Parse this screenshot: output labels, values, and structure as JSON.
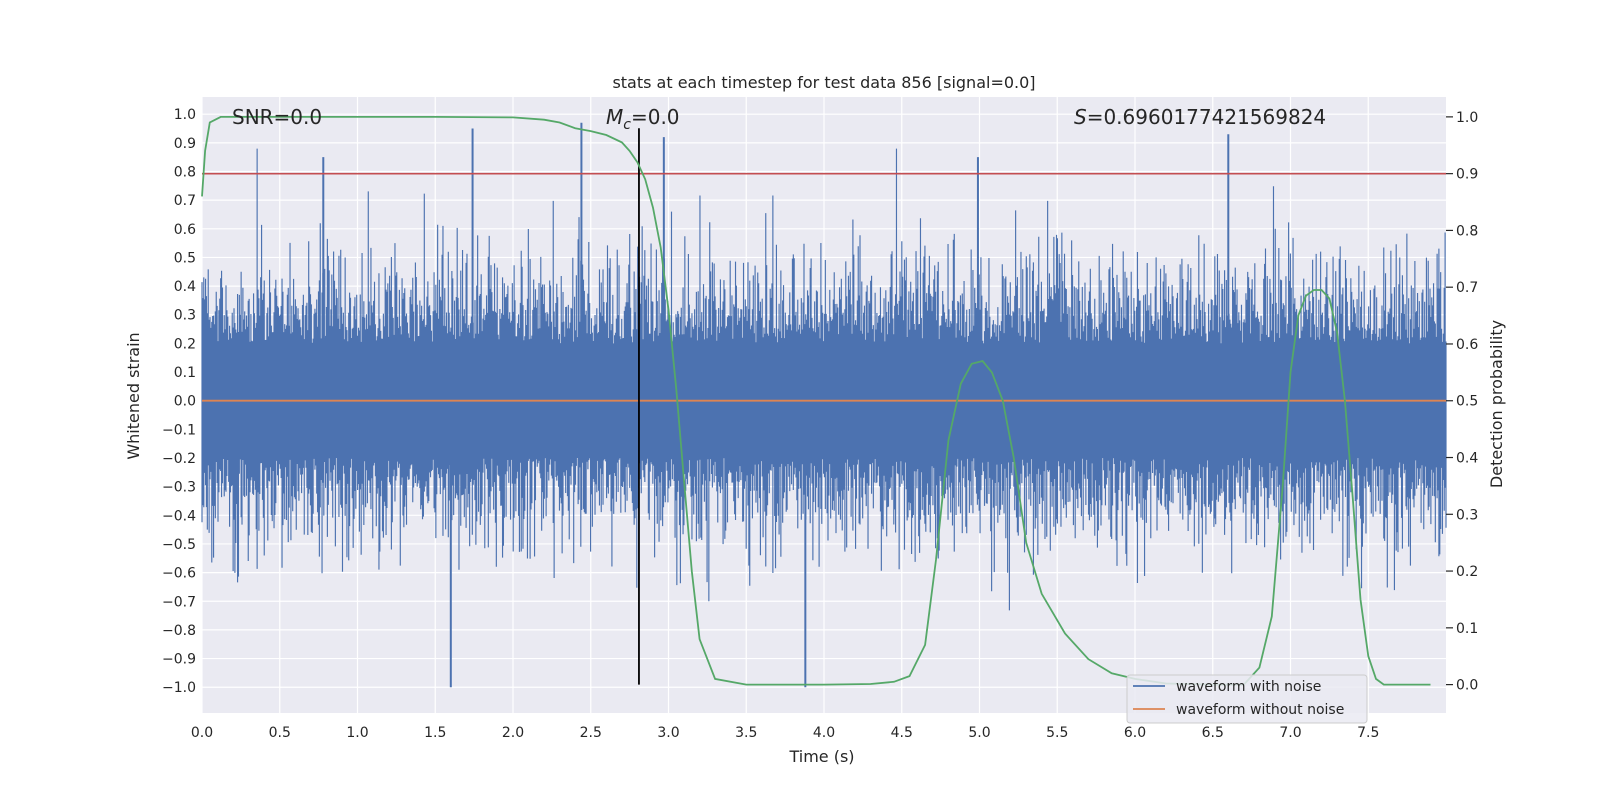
{
  "chart_data": {
    "type": "line",
    "title": "stats at each timestep for test data 856 [signal=0.0]",
    "xlabel": "Time (s)",
    "ylabel": "Whitened strain",
    "y2label": "Detection probability",
    "xlim": [
      0.0,
      8.0
    ],
    "ylim": [
      -1.09,
      1.06
    ],
    "y2lim": [
      -0.05,
      1.035
    ],
    "x_ticks": [
      0.0,
      0.5,
      1.0,
      1.5,
      2.0,
      2.5,
      3.0,
      3.5,
      4.0,
      4.5,
      5.0,
      5.5,
      6.0,
      6.5,
      7.0,
      7.5
    ],
    "x_tick_labels": [
      "0.0",
      "0.5",
      "1.0",
      "1.5",
      "2.0",
      "2.5",
      "3.0",
      "3.5",
      "4.0",
      "4.5",
      "5.0",
      "5.5",
      "6.0",
      "6.5",
      "7.0",
      "7.5"
    ],
    "y_ticks": [
      1.0,
      0.9,
      0.8,
      0.7,
      0.6,
      0.5,
      0.4,
      0.3,
      0.2,
      0.1,
      0.0,
      -0.1,
      -0.2,
      -0.3,
      -0.4,
      -0.5,
      -0.6,
      -0.7,
      -0.8,
      -0.9,
      -1.0
    ],
    "y_tick_labels": [
      "1.0",
      "0.9",
      "0.8",
      "0.7",
      "0.6",
      "0.5",
      "0.4",
      "0.3",
      "0.2",
      "0.1",
      "0.0",
      "−0.1",
      "−0.2",
      "−0.3",
      "−0.4",
      "−0.5",
      "−0.6",
      "−0.7",
      "−0.8",
      "−0.9",
      "−1.0"
    ],
    "y2_ticks": [
      1.0,
      0.9,
      0.8,
      0.7,
      0.6,
      0.5,
      0.4,
      0.3,
      0.2,
      0.1,
      0.0
    ],
    "y2_tick_labels": [
      "1.0",
      "0.9",
      "0.8",
      "0.7",
      "0.6",
      "0.5",
      "0.4",
      "0.3",
      "0.2",
      "0.1",
      "0.0"
    ],
    "annotations": {
      "snr": "SNR=0.0",
      "mc_symbol": "M",
      "mc_sub": "c",
      "mc_value": "=0.0",
      "s_symbol": "S",
      "s_value": "=0.6960177421569824"
    },
    "vline_x": 2.81,
    "threshold_probability": 0.9,
    "series": [
      {
        "name": "waveform with noise",
        "color": "#4c72b0",
        "axis": "left",
        "description": "dense whitened noise, roughly symmetric about 0 with peaks near ±0.9",
        "seed": 856,
        "n_samples": 1400,
        "peak_markers": [
          {
            "x": 1.6,
            "y": -1.0
          },
          {
            "x": 3.88,
            "y": -1.0
          },
          {
            "x": 1.74,
            "y": 0.95
          },
          {
            "x": 2.44,
            "y": 0.97
          },
          {
            "x": 6.6,
            "y": 0.93
          },
          {
            "x": 2.97,
            "y": 0.92
          },
          {
            "x": 0.78,
            "y": 0.85
          },
          {
            "x": 4.99,
            "y": 0.85
          }
        ]
      },
      {
        "name": "waveform without noise",
        "color": "#dd8452",
        "axis": "left",
        "x": [
          0.0,
          8.0
        ],
        "y": [
          0.0,
          0.0
        ]
      },
      {
        "name": "detection probability",
        "color": "#55a868",
        "axis": "right",
        "x": [
          0.0,
          0.02,
          0.05,
          0.12,
          0.2,
          0.5,
          1.0,
          1.5,
          2.0,
          2.2,
          2.3,
          2.4,
          2.5,
          2.6,
          2.7,
          2.75,
          2.8,
          2.85,
          2.9,
          2.95,
          3.0,
          3.05,
          3.1,
          3.15,
          3.2,
          3.3,
          3.5,
          4.0,
          4.3,
          4.45,
          4.55,
          4.65,
          4.72,
          4.8,
          4.88,
          4.95,
          5.02,
          5.08,
          5.15,
          5.22,
          5.3,
          5.4,
          5.55,
          5.7,
          5.85,
          6.0,
          6.2,
          6.5,
          6.7,
          6.8,
          6.88,
          6.95,
          7.0,
          7.05,
          7.1,
          7.15,
          7.2,
          7.25,
          7.3,
          7.35,
          7.4,
          7.45,
          7.5,
          7.55,
          7.6,
          7.65,
          7.75,
          7.9
        ],
        "y": [
          0.86,
          0.94,
          0.99,
          1.0,
          1.0,
          1.0,
          1.0,
          1.0,
          0.999,
          0.995,
          0.99,
          0.98,
          0.975,
          0.968,
          0.955,
          0.94,
          0.92,
          0.89,
          0.84,
          0.77,
          0.66,
          0.52,
          0.36,
          0.2,
          0.08,
          0.01,
          0.0,
          0.0,
          0.001,
          0.005,
          0.015,
          0.07,
          0.22,
          0.43,
          0.53,
          0.565,
          0.57,
          0.55,
          0.5,
          0.4,
          0.25,
          0.16,
          0.09,
          0.045,
          0.02,
          0.01,
          0.002,
          0.0,
          0.0,
          0.03,
          0.12,
          0.35,
          0.55,
          0.65,
          0.685,
          0.695,
          0.695,
          0.68,
          0.62,
          0.5,
          0.33,
          0.15,
          0.05,
          0.01,
          0.0,
          0.0,
          0.0,
          0.0
        ]
      }
    ],
    "threshold_color": "#c44e52",
    "vline_color": "#000000",
    "legend": {
      "placement": "bottom-right",
      "entries": [
        "waveform with noise",
        "waveform without noise"
      ]
    }
  }
}
